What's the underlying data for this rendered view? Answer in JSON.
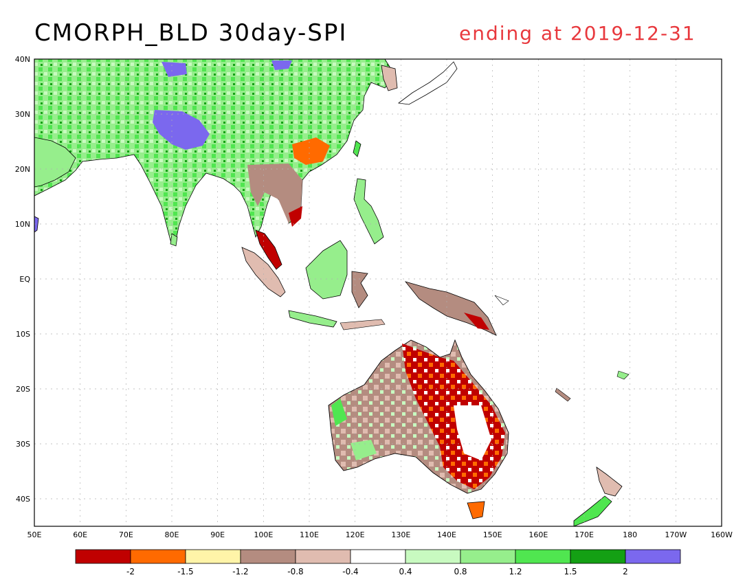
{
  "header": {
    "title": "CMORPH_BLD 30day-SPI",
    "subtitle": "ending at 2019-12-31",
    "subtitle_color": "#e8383d"
  },
  "map": {
    "lat_labels": [
      "40N",
      "30N",
      "20N",
      "10N",
      "EQ",
      "10S",
      "20S",
      "30S",
      "40S"
    ],
    "lon_labels": [
      "50E",
      "60E",
      "70E",
      "80E",
      "90E",
      "100E",
      "110E",
      "120E",
      "130E",
      "140E",
      "150E",
      "160E",
      "170E",
      "180",
      "170W",
      "160W"
    ],
    "regions": {
      "asia_wet": "#5bd65b",
      "asia_very_wet": "#7b68ee",
      "australia_dry": "#c00000",
      "australia_moderate_dry": "#ff6a00",
      "maritime_dry": "#b58e80",
      "ocean": "#ffffff"
    }
  },
  "legend": {
    "colors": [
      "#c00000",
      "#ff6a00",
      "#fff4a8",
      "#b48c80",
      "#e0bcb0",
      "#ffffff",
      "#c8fac0",
      "#96ee8c",
      "#50e650",
      "#14a014",
      "#7b68ee"
    ],
    "labels": [
      "-2",
      "-1.5",
      "-1.2",
      "-0.8",
      "-0.4",
      "0.4",
      "0.8",
      "1.2",
      "1.5",
      "2"
    ]
  }
}
